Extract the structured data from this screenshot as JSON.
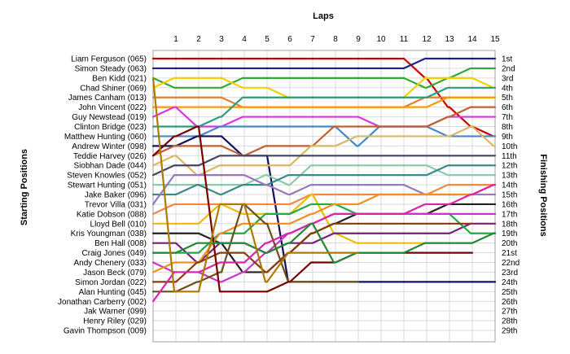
{
  "chart_data": {
    "type": "line",
    "title": "",
    "top_axis_label": "Laps",
    "left_axis_label": "Starting Positions",
    "right_axis_label": "Finishing Positions",
    "laps": [
      1,
      2,
      3,
      4,
      5,
      6,
      7,
      8,
      9,
      10,
      11,
      12,
      13,
      14,
      15
    ],
    "start_labels": [
      "Liam Ferguson (065)",
      "Simon Steady (063)",
      "Ben Kidd (021)",
      "Chad Shiner (069)",
      "James Canham (013)",
      "John Vincent (022)",
      "Guy Newstead (019)",
      "Clinton Bridge (023)",
      "Matthew Hunting (060)",
      "Andrew Winter (098)",
      "Teddie Harvey (026)",
      "Siobhan Dade (044)",
      "Steven Knowles (052)",
      "Stewart Hunting (051)",
      "Jake Baker (096)",
      "Trevor Villa (031)",
      "Katie Dobson (088)",
      "Lloyd Bell (010)",
      "Kris Youngman (038)",
      "Ben Hall (008)",
      "Craig Jones (049)",
      "Andy Chenery (033)",
      "Jason Beck (079)",
      "Simon Jordan (022)",
      "Alan Hunting (045)",
      "Jonathan Carberry (002)",
      "Jak Warner (099)",
      "Henry Riley (029)",
      "Gavin Thompson (009)"
    ],
    "finish_labels": [
      "1st",
      "2nd",
      "3rd",
      "4th",
      "5th",
      "6th",
      "7th",
      "8th",
      "9th",
      "10th",
      "11th",
      "12th",
      "13th",
      "14th",
      "15th",
      "16th",
      "17th",
      "18th",
      "19th",
      "20th",
      "21st",
      "22nd",
      "23rd",
      "24th",
      "25th",
      "26th",
      "27th",
      "28th",
      "29th"
    ],
    "series": [
      {
        "color": "#cc0000",
        "positions": [
          1,
          1,
          1,
          1,
          1,
          1,
          1,
          1,
          1,
          1,
          1,
          1,
          3,
          6,
          8,
          9
        ]
      },
      {
        "color": "#1f1f8f",
        "positions": [
          2,
          2,
          2,
          2,
          2,
          2,
          2,
          2,
          2,
          2,
          2,
          2,
          1,
          1,
          1,
          1
        ]
      },
      {
        "color": "#33aa33",
        "positions": [
          3,
          4,
          4,
          4,
          3,
          3,
          3,
          3,
          3,
          3,
          3,
          3,
          4,
          3,
          2,
          2
        ]
      },
      {
        "color": "#f0d000",
        "positions": [
          4,
          3,
          3,
          3,
          4,
          4,
          5,
          5,
          5,
          5,
          5,
          5,
          3,
          3,
          3,
          4
        ]
      },
      {
        "color": "#e08030",
        "positions": [
          5,
          5,
          5,
          5,
          6,
          6,
          6,
          6,
          6,
          6,
          6,
          6,
          5,
          5,
          5,
          5
        ]
      },
      {
        "color": "#ff9900",
        "positions": [
          6,
          6,
          6,
          6,
          6,
          6,
          6,
          6,
          6,
          6,
          6,
          6,
          6,
          5,
          5,
          5
        ]
      },
      {
        "color": "#dd33dd",
        "positions": [
          7,
          6,
          8,
          8,
          7,
          7,
          7,
          7,
          7,
          7,
          8,
          8,
          8,
          7,
          7,
          7
        ]
      },
      {
        "color": "#2a9d7a",
        "positions": [
          8,
          8,
          8,
          7,
          5,
          5,
          5,
          5,
          5,
          5,
          5,
          5,
          5,
          4,
          4,
          4
        ]
      },
      {
        "color": "#4488cc",
        "positions": [
          9,
          9,
          9,
          8,
          8,
          8,
          8,
          8,
          8,
          10,
          8,
          8,
          8,
          9,
          9,
          9
        ]
      },
      {
        "color": "#101060",
        "positions": [
          10,
          10,
          9,
          9,
          11,
          11,
          24,
          24,
          24,
          24,
          24,
          24,
          24,
          24,
          24,
          24
        ]
      },
      {
        "color": "#c06030",
        "positions": [
          11,
          10,
          10,
          10,
          11,
          10,
          10,
          10,
          8,
          8,
          8,
          8,
          8,
          7,
          6,
          6
        ]
      },
      {
        "color": "#d8b860",
        "positions": [
          12,
          11,
          13,
          12,
          12,
          12,
          12,
          10,
          10,
          9,
          9,
          9,
          9,
          9,
          8,
          10
        ]
      },
      {
        "color": "#444466",
        "positions": [
          13,
          12,
          12,
          11,
          11,
          11,
          11,
          11,
          11,
          11,
          11,
          11,
          11,
          11,
          11,
          11
        ]
      },
      {
        "color": "#88ccaa",
        "positions": [
          14,
          14,
          14,
          14,
          14,
          13,
          14,
          12,
          12,
          12,
          12,
          12,
          12,
          13,
          13,
          13
        ]
      },
      {
        "color": "#3a8a8a",
        "positions": [
          15,
          15,
          14,
          15,
          14,
          14,
          13,
          13,
          13,
          13,
          13,
          13,
          13,
          12,
          12,
          12
        ]
      },
      {
        "color": "#9977bb",
        "positions": [
          16,
          13,
          13,
          13,
          13,
          14,
          15,
          14,
          14,
          14,
          14,
          14,
          15,
          15,
          15,
          15
        ]
      },
      {
        "color": "#ee8844",
        "positions": [
          17,
          16,
          16,
          16,
          16,
          16,
          16,
          15,
          15,
          15,
          15,
          15,
          15,
          14,
          14,
          14
        ]
      },
      {
        "color": "#eebb00",
        "positions": [
          18,
          18,
          18,
          16,
          17,
          17,
          17,
          15,
          19,
          20,
          20,
          20,
          20,
          20,
          20
        ]
      },
      {
        "color": "#222222",
        "positions": [
          19,
          19,
          19,
          20,
          23,
          23,
          21,
          19,
          18,
          17,
          17,
          17,
          17,
          16,
          16,
          16
        ]
      },
      {
        "color": "#7a1f7a",
        "positions": [
          20,
          20,
          22,
          20,
          20,
          21,
          20,
          20,
          19,
          19,
          19,
          19,
          19,
          19,
          18,
          18
        ]
      },
      {
        "color": "#22aa44",
        "positions": [
          21,
          21,
          21,
          19,
          19,
          17,
          17,
          16,
          16,
          17,
          17,
          17,
          17,
          17,
          19,
          19
        ]
      },
      {
        "color": "#cc33cc",
        "positions": [
          22,
          23,
          23,
          24,
          23,
          21,
          19,
          18,
          17,
          17,
          17,
          17,
          17,
          17,
          17,
          17
        ]
      },
      {
        "color": "#f09020",
        "positions": [
          23,
          22,
          22,
          19,
          18,
          18,
          18,
          17,
          16,
          16,
          15,
          15,
          15,
          15,
          15,
          14
        ]
      },
      {
        "color": "#8b3a0a",
        "positions": [
          24,
          24,
          22,
          21,
          21,
          23,
          21,
          19,
          18,
          18,
          18,
          18,
          18,
          18,
          18
        ]
      },
      {
        "color": "#6b4f1a",
        "positions": [
          25,
          25,
          24,
          23,
          16,
          18,
          24,
          24,
          24,
          24
        ]
      },
      {
        "color": "#dd22aa",
        "positions": [
          26,
          23,
          23,
          22,
          22,
          20,
          19,
          18,
          17,
          17,
          17,
          17,
          16,
          16,
          15,
          14
        ]
      },
      {
        "color": "#7a0000",
        "positions": [
          11,
          9,
          8,
          25,
          25,
          25,
          24,
          22,
          22,
          21,
          21,
          21,
          21,
          21,
          21
        ]
      },
      {
        "color": "#228833",
        "positions": [
          21,
          21,
          20,
          20,
          20,
          21,
          20,
          18,
          22,
          21,
          21,
          21,
          20,
          20,
          20,
          19
        ]
      },
      {
        "color": "#b07a00",
        "positions": [
          3,
          25,
          25,
          16,
          16,
          24,
          21,
          21,
          21,
          21
        ]
      }
    ]
  }
}
